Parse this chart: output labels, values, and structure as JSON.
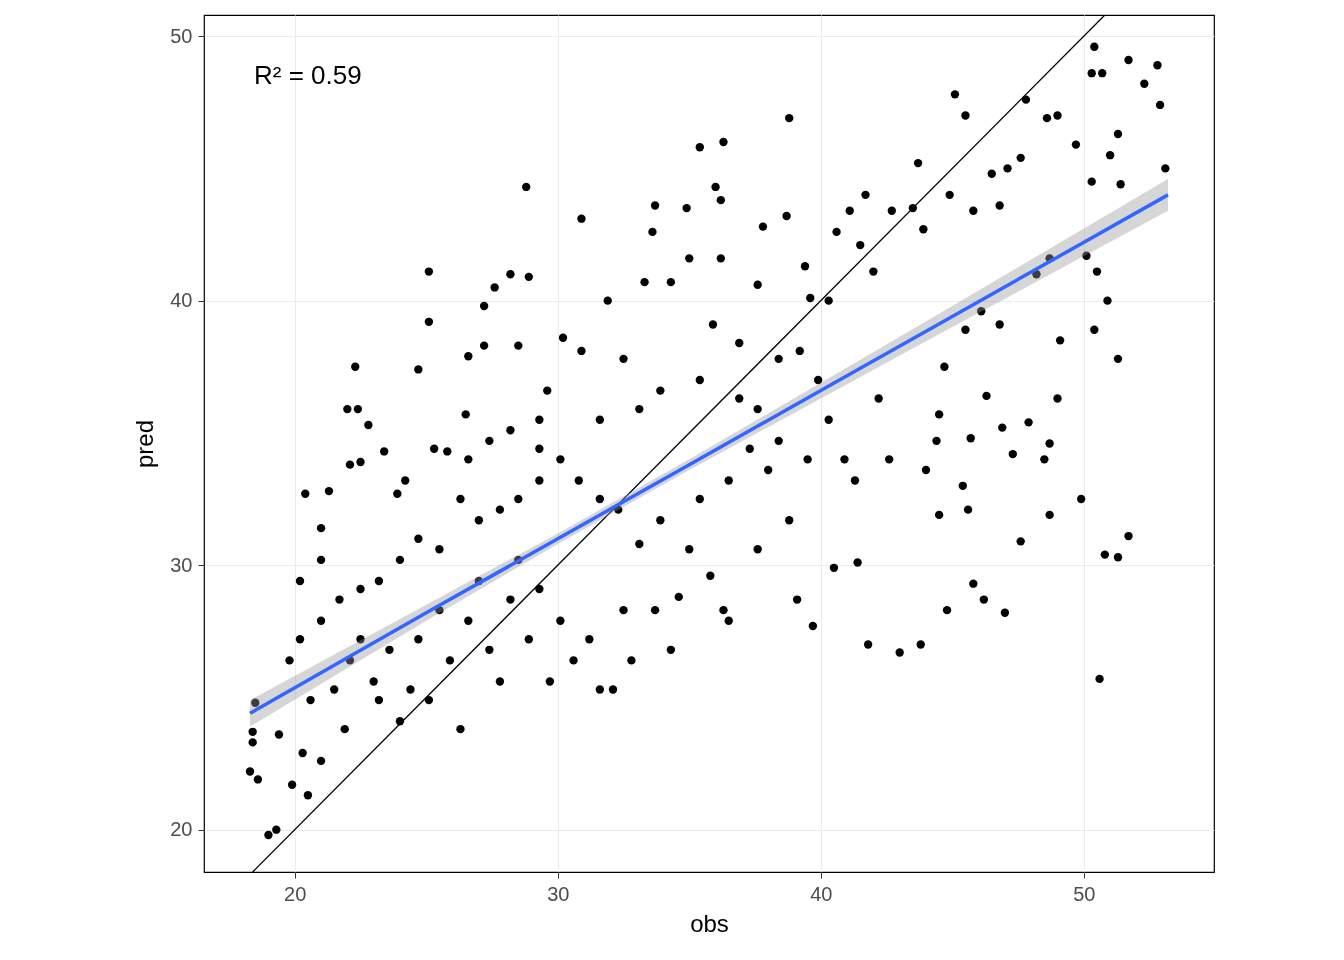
{
  "chart_data": {
    "type": "scatter",
    "xlabel": "obs",
    "ylabel": "pred",
    "xlim": [
      16.55,
      54.95
    ],
    "ylim": [
      18.4,
      50.8
    ],
    "xticks": [
      20,
      30,
      40,
      50
    ],
    "yticks": [
      20,
      30,
      40,
      50
    ],
    "grid": true,
    "annotations": [
      "R² = 0.59"
    ],
    "series": [
      {
        "marker": "circle",
        "color": "#000000",
        "x": [
          18.3,
          18.4,
          18.6,
          18.5,
          19.0,
          19.3,
          19.9,
          20.5,
          20.4,
          20.2,
          21.0,
          21.0,
          21.3,
          22.0,
          22.3,
          22.4,
          22.1,
          22.8,
          22.5,
          23.4,
          23.9,
          24.2,
          24.7,
          25.1,
          25.1,
          25.3,
          25.8,
          26.5,
          26.6,
          27.2,
          27.2,
          27.6,
          28.2,
          28.8,
          28.9,
          28.5,
          29.6,
          29.3,
          30.9,
          30.2,
          30.9,
          31.9,
          32.5,
          33.6,
          33.7,
          34.9,
          35.4,
          36.3,
          36.0,
          36.2,
          36.2,
          35.0,
          33.3,
          34.3,
          35.9,
          36.9,
          37.6,
          37.8,
          38.7,
          38.8,
          39.4,
          39.6,
          40.3,
          40.6,
          41.1,
          41.7,
          41.5,
          42.0,
          42.7,
          43.7,
          43.5,
          43.9,
          45.1,
          45.5,
          44.9,
          45.8,
          46.5,
          46.8,
          47.8,
          47.1,
          47.6,
          48.6,
          49.0,
          49.7,
          50.4,
          50.7,
          50.3,
          51.7,
          52.3,
          52.8,
          52.9,
          53.1,
          51.3,
          51.0,
          50.3,
          51.4,
          50.9,
          50.5,
          50.1,
          51.3,
          50.4,
          49.9,
          51.7,
          50.8,
          51.3,
          50.6,
          48.7,
          48.7,
          48.5,
          47.9,
          47.6,
          48.2,
          46.9,
          47.3,
          47.0,
          46.2,
          45.8,
          45.6,
          45.4,
          45.7,
          44.8,
          43.8,
          43.0,
          41.8,
          41.4,
          40.5,
          39.7,
          39.1,
          40.9,
          41.3,
          42.2,
          42.6,
          44.4,
          44.5,
          44.7,
          44.5,
          44.0,
          46.3,
          45.5,
          46.1,
          46.8,
          49.1,
          49.0,
          48.7,
          18.4,
          19.4,
          20.3,
          21.0,
          20.6,
          21.5,
          21.9,
          22.1,
          22.5,
          23.0,
          23.2,
          23.6,
          24.0,
          24.4,
          24.7,
          25.1,
          25.5,
          25.9,
          26.3,
          26.6,
          27.0,
          27.4,
          27.8,
          28.2,
          28.5,
          28.9,
          29.3,
          29.7,
          30.1,
          30.6,
          31.2,
          31.6,
          32.1,
          32.5,
          32.8,
          33.1,
          33.7,
          34.3,
          34.6,
          35.0,
          35.8,
          36.3,
          36.5,
          37.6,
          38.8,
          38.0,
          39.5,
          36.5,
          35.4,
          33.9,
          32.3,
          31.6,
          30.8,
          30.1,
          29.3,
          28.5,
          27.8,
          27.0,
          26.3,
          25.5,
          24.7,
          24.0,
          23.2,
          22.5,
          21.7,
          21.0,
          20.2,
          19.8,
          26.6,
          27.4,
          28.2,
          29.3,
          31.6,
          33.1,
          33.9,
          35.4,
          36.9,
          37.6,
          38.4,
          39.2,
          39.9,
          40.3,
          38.4,
          37.3
        ],
        "values": [
          22.2,
          23.7,
          21.9,
          24.8,
          19.8,
          20.0,
          21.7,
          21.3,
          32.7,
          29.4,
          30.2,
          31.4,
          32.8,
          35.9,
          37.5,
          35.9,
          33.8,
          35.3,
          33.9,
          34.3,
          32.7,
          33.2,
          37.4,
          41.1,
          39.2,
          34.4,
          34.3,
          35.7,
          37.9,
          38.3,
          39.8,
          40.5,
          41.0,
          44.3,
          40.9,
          38.3,
          36.6,
          34.4,
          43.1,
          38.6,
          38.1,
          40.0,
          37.8,
          42.6,
          43.6,
          43.5,
          45.8,
          46.0,
          44.3,
          43.8,
          41.6,
          41.6,
          40.7,
          40.7,
          39.1,
          38.4,
          40.6,
          42.8,
          43.2,
          46.9,
          41.3,
          40.1,
          40.0,
          42.6,
          43.4,
          44.0,
          42.1,
          41.1,
          43.4,
          45.2,
          43.5,
          42.7,
          47.8,
          47.0,
          44.0,
          43.4,
          44.8,
          43.6,
          47.6,
          45.0,
          45.4,
          46.9,
          47.0,
          45.9,
          49.6,
          48.6,
          48.6,
          49.1,
          48.2,
          48.9,
          47.4,
          45.0,
          46.3,
          45.5,
          44.5,
          44.4,
          40.0,
          41.1,
          41.7,
          37.8,
          38.9,
          32.5,
          31.1,
          30.4,
          30.3,
          25.7,
          31.9,
          34.6,
          34.0,
          35.4,
          30.9,
          41.0,
          35.2,
          34.2,
          28.2,
          28.7,
          29.3,
          32.1,
          33.0,
          34.8,
          28.3,
          27.0,
          26.7,
          27.0,
          30.1,
          29.9,
          27.7,
          28.7,
          34.0,
          33.2,
          36.3,
          34.0,
          34.7,
          35.7,
          37.5,
          31.9,
          33.6,
          36.4,
          38.9,
          39.6,
          39.1,
          38.5,
          36.3,
          41.6,
          23.3,
          23.6,
          22.9,
          22.6,
          24.9,
          25.3,
          23.8,
          26.4,
          27.2,
          25.6,
          24.9,
          26.8,
          24.1,
          25.3,
          27.2,
          24.9,
          28.3,
          26.4,
          23.8,
          27.9,
          29.4,
          26.8,
          25.6,
          28.7,
          30.2,
          27.2,
          29.1,
          25.6,
          27.9,
          26.4,
          27.2,
          25.3,
          25.3,
          28.3,
          26.4,
          30.8,
          28.3,
          26.8,
          28.8,
          30.6,
          29.6,
          28.3,
          27.9,
          30.6,
          31.7,
          33.6,
          34.0,
          33.2,
          32.5,
          31.7,
          32.1,
          32.5,
          33.2,
          34.0,
          33.2,
          32.5,
          32.1,
          31.7,
          32.5,
          30.6,
          31.0,
          30.2,
          29.4,
          29.1,
          28.7,
          27.9,
          27.2,
          26.4,
          34.0,
          34.7,
          35.1,
          35.5,
          35.5,
          35.9,
          36.6,
          37.0,
          36.3,
          35.9,
          37.8,
          38.1,
          37.0,
          35.5,
          34.7,
          34.4
        ]
      },
      {
        "type": "line",
        "color": "#000000",
        "x": [
          18.4,
          50.8
        ],
        "values": [
          18.4,
          50.8
        ]
      },
      {
        "type": "line",
        "color": "#3366ff",
        "x": [
          18.3,
          25,
          30,
          35,
          40,
          45,
          53.2
        ],
        "values": [
          24.4,
          28.2,
          31.0,
          33.8,
          36.6,
          39.4,
          44.0
        ],
        "lower": [
          23.9,
          27.9,
          30.8,
          33.6,
          36.3,
          39.0,
          43.4
        ],
        "upper": [
          24.9,
          28.5,
          31.2,
          34.0,
          36.9,
          39.8,
          44.6
        ]
      }
    ]
  }
}
